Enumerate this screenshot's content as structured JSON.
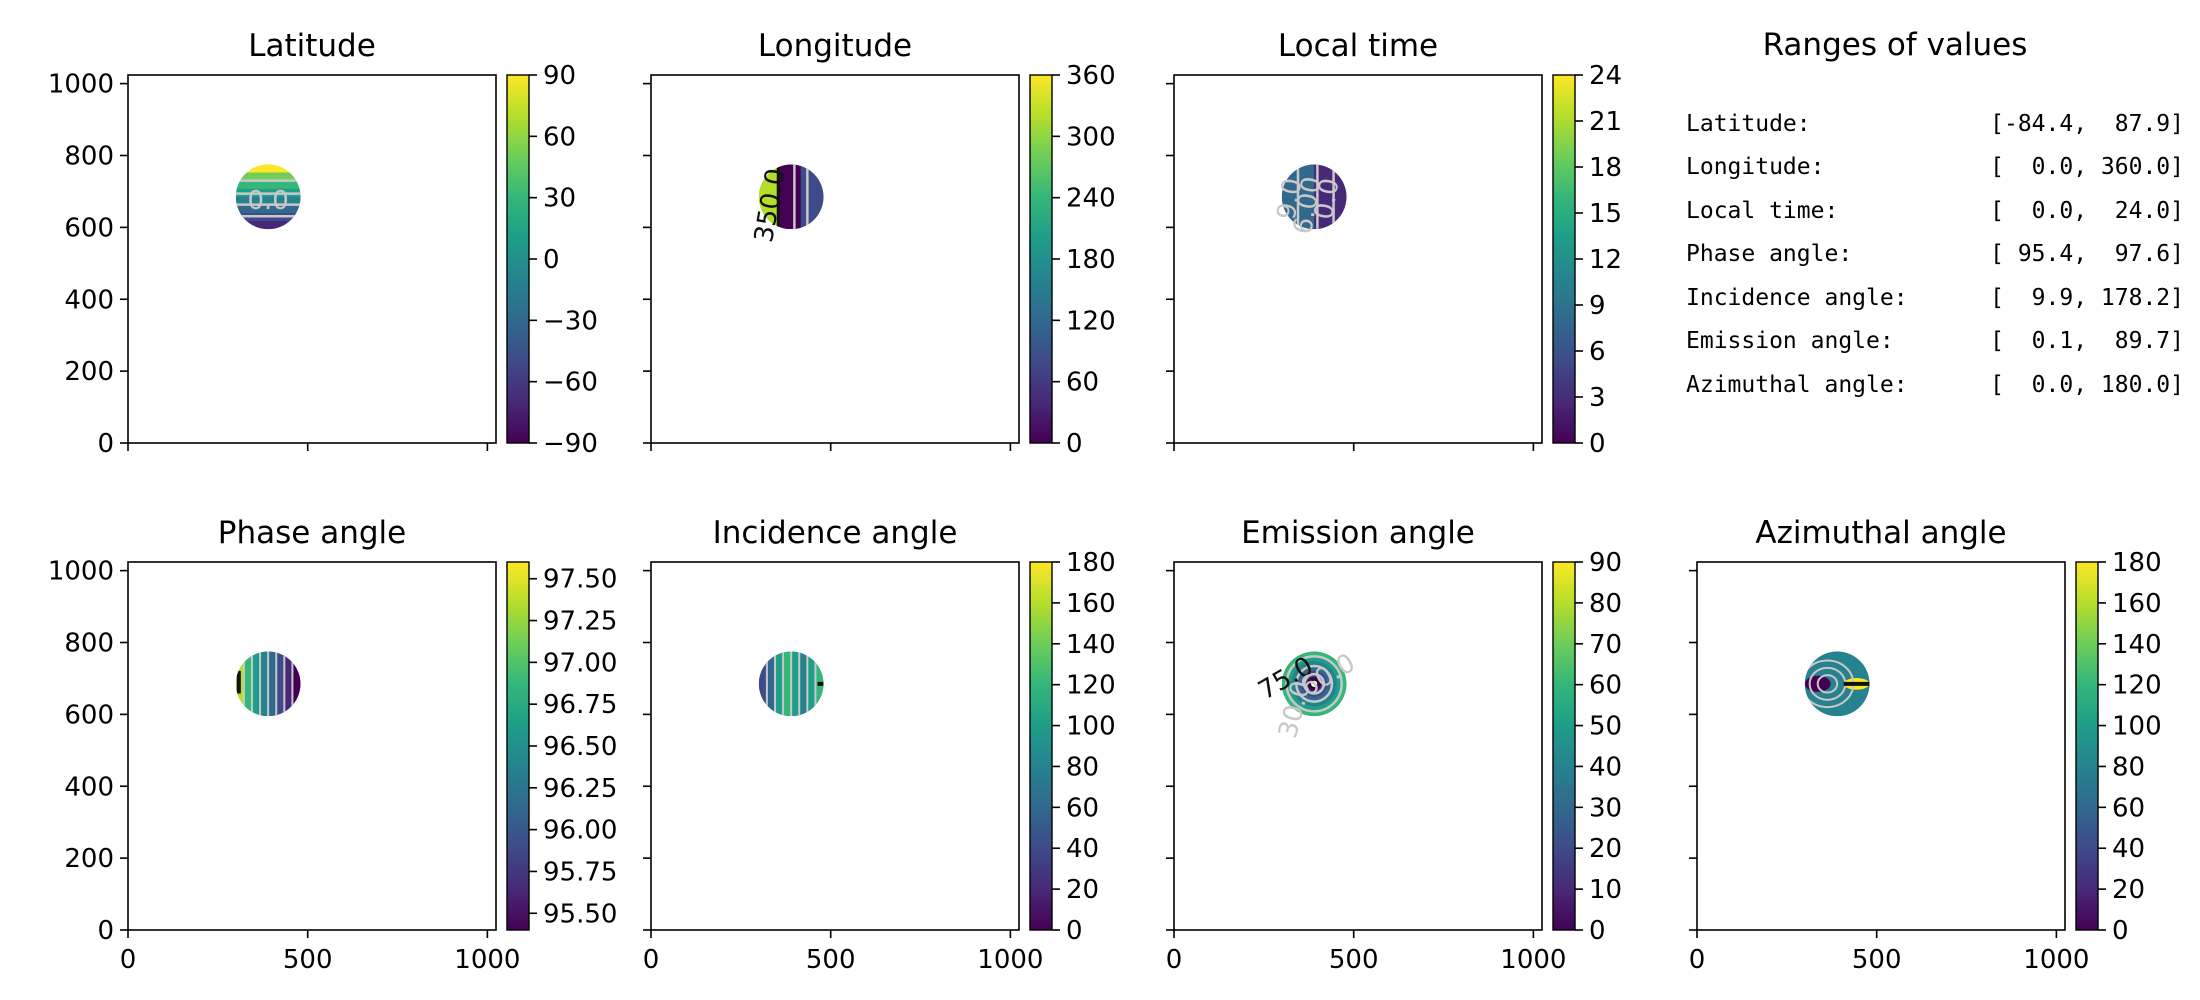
{
  "chart_data": [
    {
      "type": "heatmap",
      "title": "Latitude",
      "x_ticks": [
        0,
        500,
        1000
      ],
      "x_tick_labels_shown": false,
      "y_ticks": [
        0,
        200,
        400,
        600,
        800,
        1000
      ],
      "y_tick_labels_shown": true,
      "xlim": [
        0,
        1024
      ],
      "ylim": [
        0,
        1024
      ],
      "disk": {
        "center": [
          390,
          685
        ],
        "radius": 90
      },
      "colorbar": {
        "range": [
          -90,
          90
        ],
        "ticks": [
          "90",
          "60",
          "30",
          "0",
          "−30",
          "−60",
          "−90"
        ]
      },
      "contour_labels": [
        "0.0"
      ]
    },
    {
      "type": "heatmap",
      "title": "Longitude",
      "x_ticks": [
        0,
        500,
        1000
      ],
      "x_tick_labels_shown": false,
      "y_ticks": [
        0,
        200,
        400,
        600,
        800,
        1000
      ],
      "y_tick_labels_shown": false,
      "xlim": [
        0,
        1024
      ],
      "ylim": [
        0,
        1024
      ],
      "disk": {
        "center": [
          390,
          685
        ],
        "radius": 90
      },
      "colorbar": {
        "range": [
          0,
          360
        ],
        "ticks": [
          "360",
          "300",
          "240",
          "180",
          "120",
          "60",
          "0"
        ]
      },
      "contour_labels": [
        "350.0"
      ]
    },
    {
      "type": "heatmap",
      "title": "Local time",
      "x_ticks": [
        0,
        500,
        1000
      ],
      "x_tick_labels_shown": false,
      "y_ticks": [
        0,
        200,
        400,
        600,
        800,
        1000
      ],
      "y_tick_labels_shown": false,
      "xlim": [
        0,
        1024
      ],
      "ylim": [
        0,
        1024
      ],
      "disk": {
        "center": [
          390,
          685
        ],
        "radius": 90
      },
      "colorbar": {
        "range": [
          0,
          24
        ],
        "ticks": [
          "24",
          "21",
          "18",
          "15",
          "12",
          "9",
          "6",
          "3",
          "0"
        ]
      },
      "contour_labels": [
        "6.00",
        "9.0",
        "0.0"
      ]
    },
    {
      "type": "heatmap",
      "title": "Phase angle",
      "x_ticks": [
        0,
        500,
        1000
      ],
      "x_tick_labels_shown": true,
      "y_ticks": [
        0,
        200,
        400,
        600,
        800,
        1000
      ],
      "y_tick_labels_shown": true,
      "xlim": [
        0,
        1024
      ],
      "ylim": [
        0,
        1024
      ],
      "disk": {
        "center": [
          390,
          685
        ],
        "radius": 90
      },
      "colorbar": {
        "range": [
          95.4,
          97.6
        ],
        "ticks": [
          "97.50",
          "97.25",
          "97.00",
          "96.75",
          "96.50",
          "96.25",
          "96.00",
          "95.75",
          "95.50"
        ]
      },
      "contour_labels": []
    },
    {
      "type": "heatmap",
      "title": "Incidence angle",
      "x_ticks": [
        0,
        500,
        1000
      ],
      "x_tick_labels_shown": true,
      "y_ticks": [
        0,
        200,
        400,
        600,
        800,
        1000
      ],
      "y_tick_labels_shown": false,
      "xlim": [
        0,
        1024
      ],
      "ylim": [
        0,
        1024
      ],
      "disk": {
        "center": [
          390,
          685
        ],
        "radius": 90
      },
      "colorbar": {
        "range": [
          0,
          180
        ],
        "ticks": [
          "180",
          "160",
          "140",
          "120",
          "100",
          "80",
          "60",
          "40",
          "20",
          "0"
        ]
      },
      "contour_labels": []
    },
    {
      "type": "heatmap",
      "title": "Emission angle",
      "x_ticks": [
        0,
        500,
        1000
      ],
      "x_tick_labels_shown": true,
      "y_ticks": [
        0,
        200,
        400,
        600,
        800,
        1000
      ],
      "y_tick_labels_shown": false,
      "xlim": [
        0,
        1024
      ],
      "ylim": [
        0,
        1024
      ],
      "disk": {
        "center": [
          390,
          685
        ],
        "radius": 90
      },
      "colorbar": {
        "range": [
          0,
          90
        ],
        "ticks": [
          "90",
          "80",
          "70",
          "60",
          "50",
          "40",
          "30",
          "20",
          "10",
          "0"
        ]
      },
      "contour_labels": [
        "75.0",
        "60.0",
        "30.0"
      ]
    },
    {
      "type": "heatmap",
      "title": "Azimuthal angle",
      "x_ticks": [
        0,
        500,
        1000
      ],
      "x_tick_labels_shown": true,
      "y_ticks": [
        0,
        200,
        400,
        600,
        800,
        1000
      ],
      "y_tick_labels_shown": false,
      "xlim": [
        0,
        1024
      ],
      "ylim": [
        0,
        1024
      ],
      "disk": {
        "center": [
          390,
          685
        ],
        "radius": 90
      },
      "colorbar": {
        "range": [
          0,
          180
        ],
        "ticks": [
          "180",
          "160",
          "140",
          "120",
          "100",
          "80",
          "60",
          "40",
          "20",
          "0"
        ]
      },
      "contour_labels": []
    }
  ],
  "ranges_panel": {
    "title": "Ranges of values",
    "rows": [
      {
        "name": "Latitude:",
        "range": "[-84.4,  87.9]"
      },
      {
        "name": "Longitude:",
        "range": "[  0.0, 360.0]"
      },
      {
        "name": "Local time:",
        "range": "[  0.0,  24.0]"
      },
      {
        "name": "Phase angle:",
        "range": "[ 95.4,  97.6]"
      },
      {
        "name": "Incidence angle:",
        "range": "[  9.9, 178.2]"
      },
      {
        "name": "Emission angle:",
        "range": "[  0.1,  89.7]"
      },
      {
        "name": "Azimuthal angle:",
        "range": "[  0.0, 180.0]"
      }
    ]
  },
  "colors": {
    "viridis": [
      "#440154",
      "#482878",
      "#3e4a89",
      "#31688e",
      "#26828e",
      "#1f9e89",
      "#35b779",
      "#6ece58",
      "#b5de2b",
      "#fde725"
    ],
    "contour_light": "#c8c8c8",
    "contour_dark": "#111111"
  }
}
